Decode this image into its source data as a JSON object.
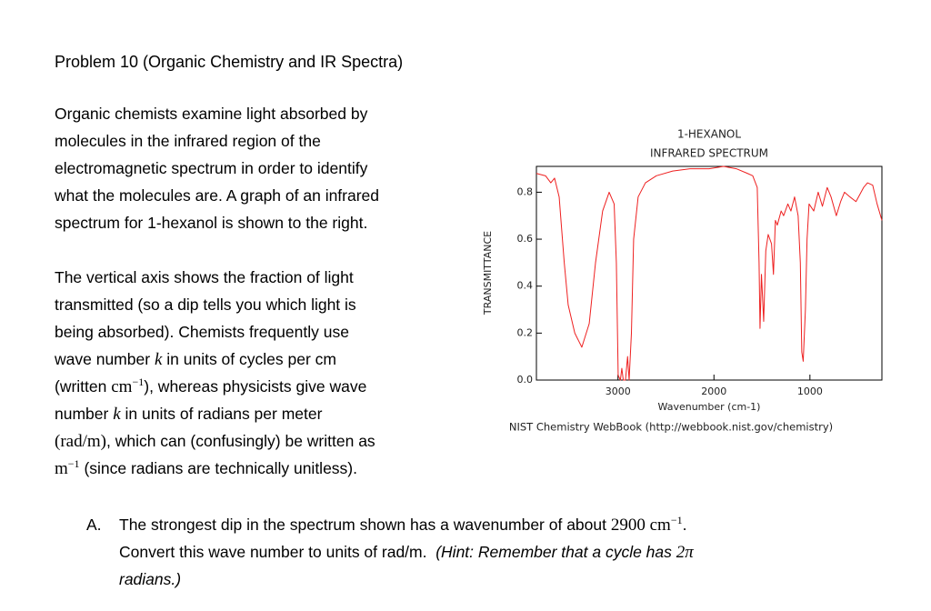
{
  "header": {
    "title": "Problem 10 (Organic Chemistry and IR Spectra)"
  },
  "para1": [
    "Organic chemists examine light absorbed by",
    "molecules in the infrared region of the",
    "electromagnetic spectrum in order to identify",
    "what the molecules are.  A graph of an infrared",
    "spectrum for 1-hexanol is shown to the right."
  ],
  "para2": [
    [
      "The vertical axis shows the fraction of light"
    ],
    [
      "transmitted (so a dip tells you which light is"
    ],
    [
      "being absorbed).  Chemists frequently use"
    ],
    [
      "wave number",
      "k",
      "in units of cycles per cm"
    ],
    [
      "(written",
      "cm",
      "−1",
      "), whereas physicists give wave"
    ],
    [
      "number",
      "k",
      "in units of radians per meter"
    ],
    [
      "(rad/m)",
      ", which can (confusingly) be written as"
    ],
    [
      "m",
      "−1",
      "(since radians are technically unitless)."
    ]
  ],
  "item_a": {
    "marker": "A.",
    "lines": [
      [
        "The strongest dip in the spectrum shown has a wavenumber of about",
        "2900 cm",
        "−1",
        "."
      ],
      [
        "Convert this wave number to units of rad/m.",
        "(Hint: Remember that a cycle has",
        "2π"
      ],
      [
        "radians.)"
      ]
    ]
  },
  "chart_data": {
    "type": "line",
    "title": "1-HEXANOL",
    "subtitle": "INFRARED SPECTRUM",
    "x_label": "Wavenumber (cm-1)",
    "y_label": "TRANSMITTANCE",
    "caption": "NIST Chemistry WebBook (http://webbook.nist.gov/chemistry)",
    "xlim": [
      3850,
      250
    ],
    "ylim": [
      0,
      0.91
    ],
    "xticks": [
      3000,
      2000,
      1000
    ],
    "yticks": [
      {
        "value": 0,
        "label": "0.0"
      },
      0.2,
      0.4,
      0.6,
      0.8
    ],
    "series": [
      {
        "color": "#ee2020",
        "x": [
          3850,
          3755,
          3700,
          3661,
          3613,
          3560,
          3519,
          3450,
          3377,
          3300,
          3234,
          3160,
          3092,
          3040,
          3017,
          2998,
          2975,
          2960,
          2945,
          2922,
          2900,
          2884,
          2860,
          2837,
          2790,
          2714,
          2600,
          2430,
          2250,
          2051,
          1900,
          1767,
          1650,
          1596,
          1549,
          1530,
          1520,
          1505,
          1482,
          1460,
          1435,
          1400,
          1380,
          1360,
          1340,
          1300,
          1274,
          1230,
          1198,
          1160,
          1123,
          1100,
          1085,
          1070,
          1047,
          1030,
          1009,
          960,
          914,
          870,
          820,
          780,
          725,
          680,
          640,
          583,
          520,
          441,
          400,
          346,
          300,
          250
        ],
        "values": [
          0.88,
          0.87,
          0.84,
          0.86,
          0.78,
          0.5,
          0.32,
          0.2,
          0.14,
          0.24,
          0.5,
          0.72,
          0.8,
          0.75,
          0.5,
          0.02,
          0.0,
          0.05,
          0.0,
          0.0,
          0.1,
          0.0,
          0.2,
          0.6,
          0.78,
          0.84,
          0.87,
          0.89,
          0.9,
          0.9,
          0.91,
          0.9,
          0.88,
          0.87,
          0.82,
          0.5,
          0.22,
          0.45,
          0.25,
          0.55,
          0.62,
          0.58,
          0.45,
          0.68,
          0.66,
          0.72,
          0.7,
          0.75,
          0.72,
          0.78,
          0.7,
          0.5,
          0.12,
          0.08,
          0.3,
          0.6,
          0.75,
          0.72,
          0.8,
          0.74,
          0.82,
          0.78,
          0.7,
          0.76,
          0.8,
          0.78,
          0.76,
          0.82,
          0.84,
          0.83,
          0.75,
          0.68
        ]
      }
    ]
  }
}
